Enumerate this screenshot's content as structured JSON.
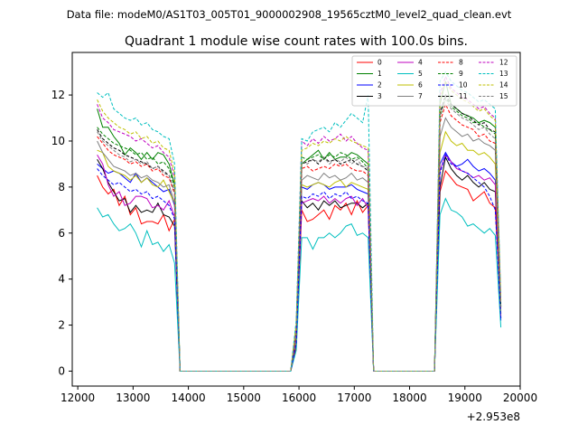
{
  "figure": {
    "suptitle": "Data file: modeM0/AS1T03_005T01_9000002908_19565cztM0_level2_quad_clean.evt"
  },
  "chart_data": {
    "type": "line",
    "title": "Quadrant 1 module wise count rates with 100.0s bins.",
    "xlabel": "",
    "ylabel": "",
    "x_offset_label": "+2.953e8",
    "xlim": [
      11900,
      20000
    ],
    "ylim": [
      -0.65,
      13.85
    ],
    "xticks": [
      12000,
      13000,
      14000,
      15000,
      16000,
      17000,
      18000,
      19000,
      20000
    ],
    "yticks": [
      0,
      2,
      4,
      6,
      8,
      10,
      12
    ],
    "xtick_labels": [
      "12000",
      "13000",
      "14000",
      "15000",
      "16000",
      "17000",
      "18000",
      "19000",
      "20000"
    ],
    "ytick_labels": [
      "0",
      "2",
      "4",
      "6",
      "8",
      "10",
      "12"
    ],
    "grid": false,
    "legend_position": "top-right",
    "legend_columns": 4,
    "x": [
      12350,
      12450,
      12550,
      12650,
      12750,
      12850,
      12950,
      13050,
      13150,
      13250,
      13350,
      13450,
      13550,
      13650,
      13750,
      13850,
      15850,
      15950,
      16050,
      16150,
      16250,
      16350,
      16450,
      16550,
      16650,
      16750,
      16850,
      16950,
      17050,
      17150,
      17250,
      17350,
      17450,
      17550,
      18450,
      18550,
      18650,
      18750,
      18850,
      18950,
      19050,
      19150,
      19250,
      19350,
      19450,
      19550,
      19650
    ],
    "series": [
      {
        "name": "0",
        "color": "#ff0000",
        "dashed": false,
        "values": [
          8.5,
          8.0,
          7.7,
          7.9,
          7.2,
          7.6,
          6.8,
          7.1,
          6.4,
          6.5,
          6.5,
          6.4,
          6.8,
          6.1,
          6.6,
          0.0,
          0.0,
          1.0,
          7.0,
          6.5,
          6.6,
          6.8,
          7.0,
          6.6,
          7.2,
          7.0,
          7.3,
          6.8,
          7.4,
          6.9,
          7.2,
          0.0,
          0.0,
          0.0,
          0.0,
          7.8,
          8.7,
          8.4,
          8.1,
          8.0,
          7.9,
          7.4,
          7.6,
          7.8,
          7.3,
          7.1,
          2.5
        ]
      },
      {
        "name": "1",
        "color": "#008000",
        "dashed": false,
        "values": [
          11.4,
          10.6,
          10.6,
          10.2,
          9.9,
          9.4,
          9.7,
          9.5,
          9.2,
          9.5,
          9.2,
          9.5,
          9.4,
          9.0,
          8.1,
          0.0,
          0.0,
          2.0,
          9.0,
          9.2,
          9.4,
          9.6,
          9.2,
          9.5,
          9.2,
          9.3,
          9.3,
          9.5,
          9.4,
          9.2,
          9.0,
          0.0,
          0.0,
          0.0,
          0.0,
          11.6,
          12.6,
          11.6,
          11.4,
          11.2,
          11.1,
          11.0,
          10.8,
          10.9,
          10.8,
          10.6,
          2.8
        ]
      },
      {
        "name": "2",
        "color": "#0000ff",
        "dashed": false,
        "values": [
          9.0,
          8.8,
          8.6,
          8.7,
          8.6,
          8.4,
          8.2,
          8.6,
          8.2,
          8.4,
          8.2,
          8.0,
          7.8,
          7.9,
          7.2,
          0.0,
          0.0,
          1.4,
          8.0,
          7.9,
          8.1,
          8.2,
          8.1,
          7.9,
          8.0,
          8.0,
          8.0,
          8.1,
          7.9,
          7.8,
          7.7,
          0.0,
          0.0,
          0.0,
          0.0,
          9.0,
          9.5,
          9.1,
          8.9,
          9.0,
          9.2,
          8.9,
          8.7,
          8.8,
          8.6,
          8.3,
          2.2
        ]
      },
      {
        "name": "3",
        "color": "#000000",
        "dashed": false,
        "values": [
          9.2,
          8.8,
          8.2,
          7.8,
          7.4,
          7.5,
          6.9,
          7.2,
          6.9,
          7.0,
          6.9,
          7.3,
          6.8,
          6.7,
          6.3,
          0.0,
          0.0,
          1.2,
          7.4,
          7.1,
          7.3,
          7.0,
          7.4,
          7.2,
          7.4,
          7.1,
          7.2,
          7.3,
          7.3,
          7.1,
          7.3,
          0.0,
          0.0,
          0.0,
          0.0,
          8.0,
          9.3,
          8.8,
          8.5,
          8.3,
          8.5,
          8.2,
          8.0,
          8.2,
          7.9,
          7.8,
          2.3
        ]
      },
      {
        "name": "4",
        "color": "#bf00bf",
        "dashed": false,
        "values": [
          9.4,
          9.0,
          8.1,
          7.6,
          7.8,
          7.2,
          7.3,
          7.6,
          7.6,
          7.5,
          7.1,
          7.2,
          7.0,
          7.4,
          6.7,
          0.0,
          0.0,
          1.3,
          7.3,
          7.4,
          7.5,
          7.4,
          7.6,
          7.3,
          7.5,
          7.3,
          7.5,
          7.6,
          7.2,
          7.5,
          7.1,
          0.0,
          0.0,
          0.0,
          0.0,
          8.7,
          9.4,
          9.1,
          8.8,
          8.7,
          8.6,
          8.4,
          8.5,
          8.3,
          8.4,
          8.1,
          2.4
        ]
      },
      {
        "name": "5",
        "color": "#00bfbf",
        "dashed": false,
        "values": [
          7.1,
          6.7,
          6.8,
          6.4,
          6.1,
          6.2,
          6.4,
          6.0,
          5.4,
          6.1,
          5.5,
          5.6,
          5.2,
          5.5,
          4.7,
          0.0,
          0.0,
          0.9,
          5.8,
          5.8,
          5.3,
          5.8,
          5.8,
          6.0,
          5.8,
          6.0,
          6.3,
          6.4,
          5.9,
          6.0,
          5.8,
          0.0,
          0.0,
          0.0,
          0.0,
          6.8,
          7.5,
          7.0,
          6.9,
          6.7,
          6.3,
          6.4,
          6.2,
          6.0,
          6.2,
          5.9,
          1.9
        ]
      },
      {
        "name": "6",
        "color": "#bfbf00",
        "dashed": false,
        "values": [
          9.6,
          9.5,
          8.9,
          8.7,
          8.6,
          8.5,
          8.3,
          8.5,
          8.2,
          8.4,
          8.1,
          8.0,
          8.3,
          7.8,
          7.3,
          0.0,
          0.0,
          1.4,
          8.1,
          8.0,
          8.1,
          8.2,
          8.1,
          8.0,
          8.2,
          8.3,
          8.0,
          8.2,
          8.1,
          8.0,
          7.9,
          0.0,
          0.0,
          0.0,
          0.0,
          9.5,
          10.4,
          10.0,
          9.8,
          9.9,
          9.6,
          9.6,
          9.4,
          9.5,
          9.3,
          9.0,
          2.5
        ]
      },
      {
        "name": "7",
        "color": "#808080",
        "dashed": false,
        "values": [
          10.0,
          9.5,
          9.2,
          8.9,
          8.8,
          8.7,
          8.5,
          8.6,
          8.4,
          8.5,
          8.3,
          8.2,
          8.0,
          8.1,
          7.3,
          0.0,
          0.0,
          1.5,
          8.3,
          8.5,
          8.4,
          8.3,
          8.6,
          8.4,
          8.5,
          8.3,
          8.4,
          8.6,
          8.3,
          8.4,
          8.2,
          0.0,
          0.0,
          0.0,
          0.0,
          10.2,
          11.0,
          10.6,
          10.4,
          10.2,
          10.3,
          10.0,
          10.1,
          9.9,
          9.8,
          9.6,
          2.6
        ]
      },
      {
        "name": "8",
        "color": "#ff0000",
        "dashed": true,
        "values": [
          10.2,
          9.9,
          9.6,
          9.4,
          9.3,
          9.2,
          9.0,
          9.1,
          8.9,
          9.0,
          8.7,
          8.8,
          8.5,
          8.4,
          7.7,
          0.0,
          0.0,
          1.6,
          8.8,
          8.9,
          8.7,
          8.8,
          8.9,
          8.8,
          9.0,
          8.9,
          9.0,
          8.8,
          8.7,
          8.7,
          8.5,
          0.0,
          0.0,
          0.0,
          0.0,
          10.8,
          11.6,
          11.1,
          10.9,
          10.7,
          10.6,
          10.5,
          10.2,
          10.3,
          10.0,
          9.9,
          2.7
        ]
      },
      {
        "name": "9",
        "color": "#008000",
        "dashed": true,
        "values": [
          10.6,
          10.3,
          10.1,
          9.9,
          9.8,
          9.7,
          9.6,
          9.4,
          9.5,
          9.2,
          9.3,
          9.0,
          9.1,
          8.8,
          8.0,
          0.0,
          0.0,
          1.8,
          9.3,
          9.2,
          9.3,
          9.4,
          9.2,
          9.4,
          9.3,
          9.5,
          9.4,
          9.2,
          9.3,
          9.1,
          8.8,
          0.0,
          0.0,
          0.0,
          0.0,
          11.0,
          11.9,
          11.5,
          11.3,
          11.1,
          11.0,
          10.8,
          10.8,
          10.6,
          10.5,
          10.3,
          2.8
        ]
      },
      {
        "name": "10",
        "color": "#0000ff",
        "dashed": true,
        "values": [
          8.8,
          8.5,
          8.3,
          8.1,
          8.2,
          8.0,
          7.8,
          7.9,
          7.7,
          7.8,
          7.5,
          7.6,
          7.4,
          7.2,
          6.6,
          0.0,
          0.0,
          1.2,
          7.6,
          7.5,
          7.7,
          7.6,
          7.8,
          7.5,
          7.7,
          7.6,
          7.8,
          7.5,
          7.6,
          7.4,
          7.3,
          0.0,
          0.0,
          0.0,
          0.0,
          8.6,
          9.4,
          9.0,
          8.9,
          8.7,
          8.6,
          8.4,
          8.2,
          8.0,
          7.6,
          7.0,
          2.3
        ]
      },
      {
        "name": "11",
        "color": "#000000",
        "dashed": true,
        "values": [
          10.5,
          10.1,
          9.9,
          9.7,
          9.6,
          9.4,
          9.3,
          9.2,
          9.1,
          9.0,
          8.8,
          8.9,
          8.7,
          8.5,
          7.8,
          0.0,
          0.0,
          1.7,
          9.0,
          9.1,
          9.2,
          9.0,
          9.3,
          9.1,
          9.2,
          9.0,
          9.1,
          9.2,
          9.0,
          8.9,
          8.7,
          0.0,
          0.0,
          0.0,
          0.0,
          11.2,
          12.0,
          11.6,
          11.4,
          11.2,
          11.1,
          10.9,
          10.7,
          10.8,
          10.5,
          10.4,
          2.8
        ]
      },
      {
        "name": "12",
        "color": "#bf00bf",
        "dashed": true,
        "values": [
          11.6,
          11.0,
          10.8,
          10.5,
          10.4,
          10.3,
          10.2,
          10.0,
          10.1,
          9.9,
          9.7,
          9.8,
          9.5,
          9.3,
          8.4,
          0.0,
          0.0,
          2.0,
          10.0,
          9.8,
          10.1,
          9.9,
          10.2,
          10.0,
          10.1,
          10.3,
          10.0,
          10.2,
          9.9,
          9.7,
          9.6,
          0.0,
          0.0,
          0.0,
          0.0,
          12.0,
          12.8,
          12.3,
          12.1,
          11.9,
          11.8,
          11.6,
          11.4,
          11.5,
          11.2,
          11.0,
          3.0
        ]
      },
      {
        "name": "13",
        "color": "#00bfbf",
        "dashed": true,
        "values": [
          12.1,
          11.9,
          12.1,
          11.4,
          11.2,
          11.0,
          10.9,
          11.0,
          10.7,
          10.8,
          10.5,
          10.4,
          10.2,
          10.1,
          9.0,
          0.0,
          0.0,
          2.2,
          10.1,
          10.0,
          10.4,
          10.5,
          10.6,
          10.4,
          10.8,
          10.6,
          10.9,
          11.2,
          11.0,
          10.8,
          12.0,
          0.0,
          0.0,
          0.0,
          0.0,
          12.6,
          13.0,
          12.6,
          12.4,
          12.2,
          12.1,
          11.9,
          11.7,
          11.8,
          11.6,
          11.4,
          3.1
        ]
      },
      {
        "name": "14",
        "color": "#bfbf00",
        "dashed": true,
        "values": [
          11.8,
          11.3,
          11.0,
          10.8,
          10.6,
          10.5,
          10.3,
          10.4,
          10.1,
          10.2,
          9.9,
          10.0,
          9.7,
          9.6,
          8.6,
          0.0,
          0.0,
          2.0,
          9.6,
          9.7,
          9.9,
          9.8,
          10.0,
          9.9,
          10.1,
          10.0,
          10.2,
          10.0,
          9.9,
          9.8,
          9.7,
          0.0,
          0.0,
          0.0,
          0.0,
          11.8,
          12.6,
          12.2,
          12.0,
          11.8,
          11.7,
          11.5,
          11.3,
          11.4,
          11.1,
          10.9,
          3.0
        ]
      },
      {
        "name": "15",
        "color": "#808080",
        "dashed": true,
        "values": [
          10.4,
          10.0,
          9.8,
          9.6,
          9.4,
          9.3,
          9.1,
          9.2,
          9.0,
          9.1,
          8.8,
          8.9,
          8.6,
          8.5,
          7.8,
          0.0,
          0.0,
          1.7,
          9.1,
          9.0,
          9.2,
          9.1,
          9.3,
          9.0,
          9.2,
          9.1,
          9.3,
          9.0,
          9.2,
          8.9,
          8.8,
          0.0,
          0.0,
          0.0,
          0.0,
          11.1,
          11.8,
          11.4,
          11.2,
          11.0,
          10.9,
          10.7,
          10.5,
          10.6,
          10.3,
          10.1,
          2.7
        ]
      }
    ]
  }
}
